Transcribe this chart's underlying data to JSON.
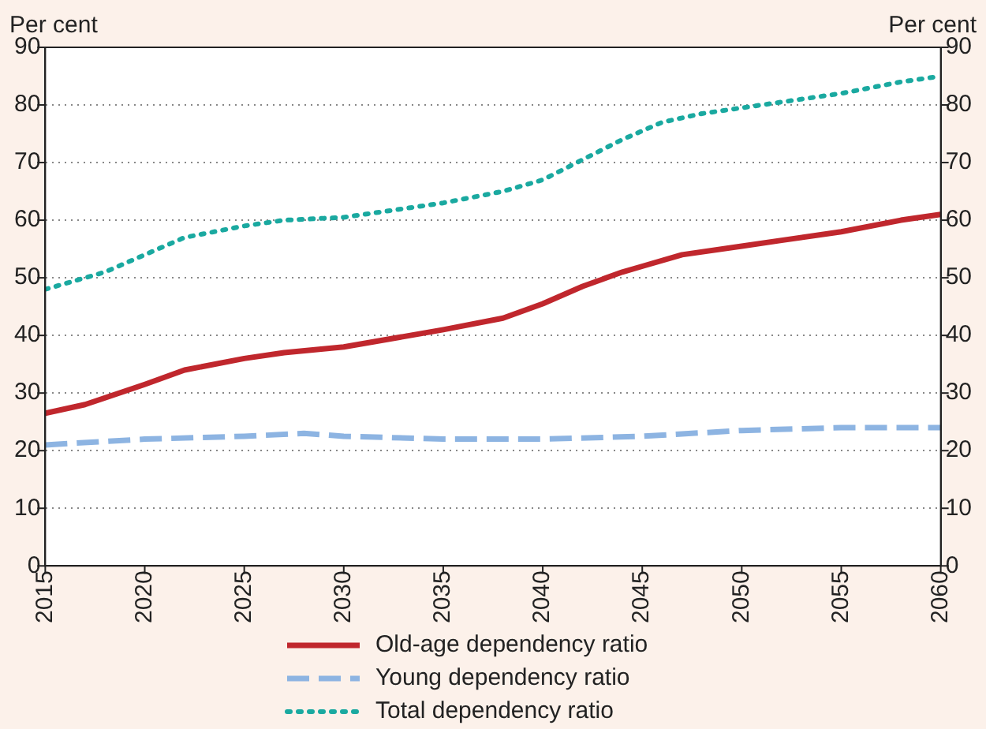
{
  "chart_data": {
    "type": "line",
    "ylabel": "Per cent",
    "y2label": "Per cent",
    "xlim": [
      2015,
      2060
    ],
    "xticks": [
      2015,
      2020,
      2025,
      2030,
      2035,
      2040,
      2045,
      2050,
      2055,
      2060
    ],
    "ylim": [
      0,
      90
    ],
    "yticks": [
      0,
      10,
      20,
      30,
      40,
      50,
      60,
      70,
      80,
      90
    ],
    "y2lim": [
      0,
      90
    ],
    "y2ticks": [
      0,
      10,
      20,
      30,
      40,
      50,
      60,
      70,
      80,
      90
    ],
    "grid": "y",
    "legend": "bottom",
    "marker": "none",
    "series": [
      {
        "name": "Old-age dependency ratio",
        "color": "#c0272d",
        "line_style": "solid",
        "x": [
          2015,
          2017,
          2020,
          2022,
          2025,
          2027,
          2030,
          2035,
          2038,
          2040,
          2042,
          2044,
          2045,
          2047,
          2050,
          2052,
          2055,
          2058,
          2060
        ],
        "values": [
          26.5,
          28,
          31.5,
          34,
          36,
          37,
          38,
          41,
          43,
          45.5,
          48.5,
          51,
          52,
          54,
          55.5,
          56.5,
          58,
          60,
          61
        ]
      },
      {
        "name": "Young dependency ratio",
        "color": "#8db4e2",
        "line_style": "dashed",
        "x": [
          2015,
          2020,
          2025,
          2028,
          2030,
          2035,
          2040,
          2045,
          2050,
          2055,
          2060
        ],
        "values": [
          21,
          22,
          22.5,
          23,
          22.5,
          22,
          22,
          22.5,
          23.5,
          24,
          24
        ]
      },
      {
        "name": "Total dependency ratio",
        "color": "#1aa9a0",
        "line_style": "dotted",
        "x": [
          2015,
          2018,
          2020,
          2022,
          2025,
          2027,
          2030,
          2035,
          2038,
          2040,
          2042,
          2044,
          2046,
          2048,
          2050,
          2055,
          2058,
          2060
        ],
        "values": [
          48,
          51,
          54,
          57,
          59,
          60,
          60.5,
          63,
          65,
          67,
          70.5,
          74,
          77,
          78.5,
          79.5,
          82,
          84,
          85
        ]
      }
    ]
  }
}
